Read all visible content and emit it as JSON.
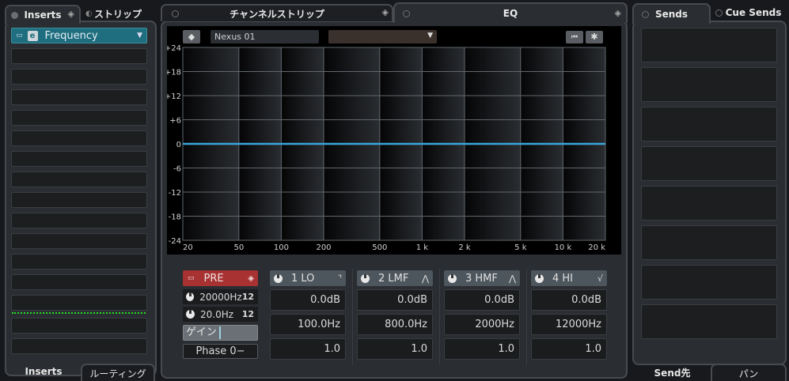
{
  "left": {
    "tabs": [
      "Inserts",
      "ストリップ"
    ],
    "insert_slot": "Frequency",
    "bottom_tabs": [
      "Inserts",
      "ルーティング"
    ],
    "slot_count": 15
  },
  "center": {
    "tabs": [
      "チャンネルストリップ",
      "EQ"
    ],
    "preset": "Nexus 01",
    "preset_dropdown": "",
    "pre": {
      "label": "PRE",
      "hi_cut": "20000Hz",
      "lo_cut": "20.0Hz",
      "gain": "ゲイン",
      "phase": "Phase 0−"
    },
    "bands": [
      {
        "label": "1 LO",
        "gain": "0.0dB",
        "freq": "100.0Hz",
        "q": "1.0",
        "shape": "low-shelf"
      },
      {
        "label": "2 LMF",
        "gain": "0.0dB",
        "freq": "800.0Hz",
        "q": "1.0",
        "shape": "peak"
      },
      {
        "label": "3 HMF",
        "gain": "0.0dB",
        "freq": "2000Hz",
        "q": "1.0",
        "shape": "peak"
      },
      {
        "label": "4 HI",
        "gain": "0.0dB",
        "freq": "12000Hz",
        "q": "1.0",
        "shape": "high-shelf"
      }
    ]
  },
  "chart_data": {
    "type": "line",
    "xscale": "log",
    "xlim": [
      20,
      20000
    ],
    "ylim": [
      -24,
      24
    ],
    "x_ticks": [
      {
        "v": 20,
        "l": "20"
      },
      {
        "v": 50,
        "l": "50"
      },
      {
        "v": 100,
        "l": "100"
      },
      {
        "v": 200,
        "l": "200"
      },
      {
        "v": 500,
        "l": "500"
      },
      {
        "v": 1000,
        "l": "1 k"
      },
      {
        "v": 2000,
        "l": "2 k"
      },
      {
        "v": 5000,
        "l": "5 k"
      },
      {
        "v": 10000,
        "l": "10 k"
      },
      {
        "v": 20000,
        "l": "20 k"
      }
    ],
    "y_ticks": [
      {
        "v": 24,
        "l": "+24"
      },
      {
        "v": 18,
        "l": "+18"
      },
      {
        "v": 12,
        "l": "+12"
      },
      {
        "v": 6,
        "l": "+6"
      },
      {
        "v": 0,
        "l": "0"
      },
      {
        "v": -6,
        "l": "-6"
      },
      {
        "v": -12,
        "l": "-12"
      },
      {
        "v": -18,
        "l": "-18"
      },
      {
        "v": -24,
        "l": "-24"
      }
    ],
    "series": [
      {
        "x": [
          20,
          20000
        ],
        "y": [
          0,
          0
        ],
        "color": "#3aa6dc"
      }
    ],
    "grid": true
  },
  "right": {
    "tabs": [
      "Sends",
      "Cue Sends"
    ],
    "bottom_tabs": [
      "Send先",
      "パン"
    ],
    "slot_count": 8
  },
  "colors": {
    "insert": "#1f6e80",
    "pre": "#a83232",
    "curve": "#3aa6dc",
    "meter": "#22dd22"
  }
}
